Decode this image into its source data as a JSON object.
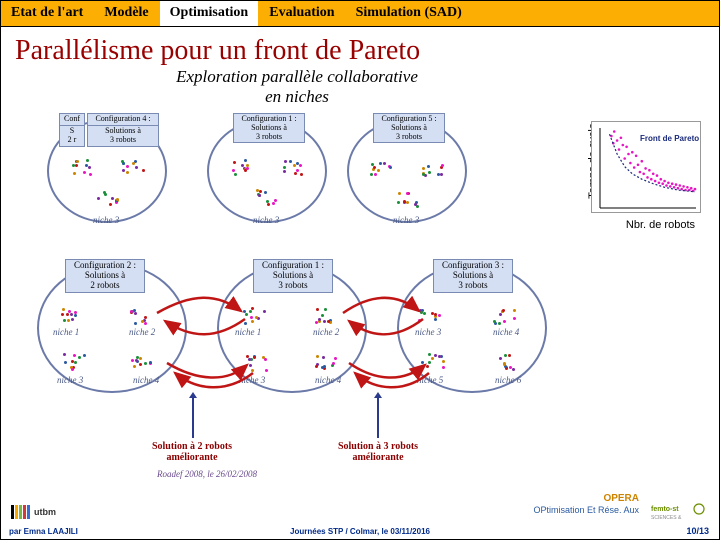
{
  "tabs": {
    "t0": "Etat de l'art",
    "t1": "Modèle",
    "t2": "Optimisation",
    "t3": "Evaluation",
    "t4": "Simulation (SAD)"
  },
  "title": "Parallélisme pour un front de Pareto",
  "diagram": {
    "heading_l1": "Exploration parallèle collaborative",
    "heading_l2": "en niches",
    "conf1": "Configuration 1 :\nSolutions à\n3 robots",
    "conf2": "Configuration 2 :\nSolutions à\n2 robots",
    "conf3": "Configuration 3 :\nSolutions à\n3 robots",
    "conf4a": "Conf",
    "conf4b": "Configuration 4 :",
    "conf4c": "S\n2 r",
    "conf4d": "Solutions à\n3 robots",
    "conf5": "Configuration 5 :\nSolutions à\n3 robots",
    "niche1": "niche 1",
    "niche2": "niche 2",
    "niche3": "niche 3",
    "niche4": "niche 4",
    "niche5": "niche 5",
    "niche6": "niche 6",
    "niche3b": "niche 3",
    "niche3c": "niche 3",
    "sol2": "Solution à 2 robots\naméliorante",
    "sol3": "Solution à 3 robots\naméliorante",
    "roadef": "Roadef 2008, le 26/02/2008"
  },
  "chart": {
    "ylabel": "Temps de cycle",
    "xlabel": "Nbr. de robots",
    "front": "Front de Pareto",
    "front_color": "#1a2a7a",
    "point_color": "#e815c4",
    "bg": "#ffffff",
    "points": [
      [
        12,
        80
      ],
      [
        14,
        72
      ],
      [
        15,
        85
      ],
      [
        18,
        75
      ],
      [
        20,
        65
      ],
      [
        22,
        78
      ],
      [
        24,
        70
      ],
      [
        26,
        55
      ],
      [
        28,
        68
      ],
      [
        30,
        60
      ],
      [
        32,
        50
      ],
      [
        34,
        62
      ],
      [
        36,
        45
      ],
      [
        38,
        58
      ],
      [
        40,
        48
      ],
      [
        42,
        40
      ],
      [
        44,
        52
      ],
      [
        46,
        38
      ],
      [
        48,
        44
      ],
      [
        50,
        34
      ],
      [
        52,
        42
      ],
      [
        54,
        32
      ],
      [
        56,
        38
      ],
      [
        58,
        30
      ],
      [
        60,
        36
      ],
      [
        62,
        28
      ],
      [
        64,
        32
      ],
      [
        66,
        27
      ],
      [
        68,
        30
      ],
      [
        70,
        25
      ],
      [
        72,
        28
      ],
      [
        74,
        24
      ],
      [
        76,
        27
      ],
      [
        78,
        23
      ],
      [
        80,
        26
      ],
      [
        82,
        22
      ],
      [
        84,
        25
      ],
      [
        86,
        21
      ],
      [
        88,
        24
      ],
      [
        90,
        20
      ],
      [
        92,
        23
      ],
      [
        94,
        20
      ],
      [
        96,
        22
      ],
      [
        98,
        19
      ],
      [
        100,
        21
      ]
    ],
    "front_line": [
      [
        10,
        82
      ],
      [
        18,
        60
      ],
      [
        26,
        46
      ],
      [
        34,
        38
      ],
      [
        44,
        32
      ],
      [
        56,
        27
      ],
      [
        68,
        23
      ],
      [
        82,
        20
      ],
      [
        100,
        18
      ]
    ]
  },
  "opera": {
    "line1": "OPERA",
    "line2": "OPtimisation Et Rése. Aux"
  },
  "footer": {
    "author": "par Emna LAAJILI",
    "event": "Journées STP / Colmar, le 03/11/2016",
    "page": "10/13",
    "utbm_colors": [
      "#000",
      "#f7a600",
      "#78b843",
      "#d23a3a",
      "#3a6bd2"
    ],
    "femto_green": "#6b8f00",
    "femto_gray": "#8a8a8a"
  },
  "colors": {
    "circle_border": "#6b7aa8",
    "confbox_bg": "#d4dff4",
    "arrow_red": "#c01515",
    "cluster_colors": [
      "#e815c4",
      "#2a5aa0",
      "#1a8f3a",
      "#cc8400",
      "#7a2aa0",
      "#c01515"
    ]
  }
}
